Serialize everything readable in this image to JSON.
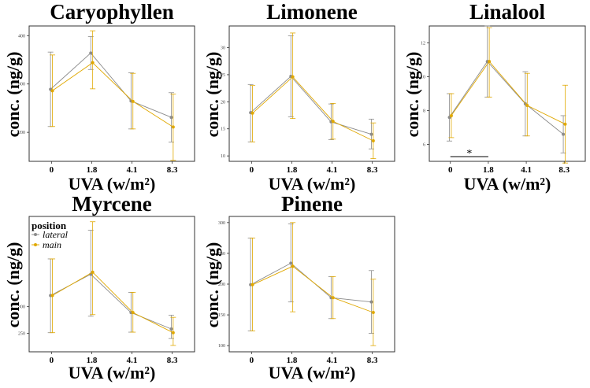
{
  "figure": {
    "legend": {
      "title": "position",
      "items": [
        "lateral",
        "main"
      ]
    },
    "colors": {
      "lateral": "#8c8c8c",
      "main": "#e0a800"
    }
  },
  "chart_data": [
    {
      "type": "line",
      "title": "Caryophyllen",
      "xlabel": "UVA (w/m²)",
      "ylabel": "conc. (ng/g)",
      "categories": [
        "0",
        "1.8",
        "4.1",
        "8.3"
      ],
      "ylim": [
        140,
        420
      ],
      "yticks": [
        200,
        300,
        400
      ],
      "series": [
        {
          "name": "lateral",
          "values": [
            289,
            364,
            265,
            231
          ],
          "lower": [
            212,
            330,
            207,
            180
          ],
          "upper": [
            366,
            398,
            323,
            282
          ]
        },
        {
          "name": "main",
          "values": [
            286,
            344,
            264,
            211
          ],
          "lower": [
            212,
            290,
            207,
            142
          ],
          "upper": [
            360,
            410,
            322,
            279
          ]
        }
      ],
      "annotations": []
    },
    {
      "type": "line",
      "title": "Limonene",
      "xlabel": "UVA (w/m²)",
      "ylabel": "conc. (ng/g)",
      "categories": [
        "0",
        "1.8",
        "4.1",
        "8.3"
      ],
      "ylim": [
        9,
        34
      ],
      "yticks": [
        10,
        15,
        20,
        25,
        30
      ],
      "series": [
        {
          "name": "lateral",
          "values": [
            18.0,
            24.7,
            16.3,
            14.0
          ],
          "lower": [
            12.6,
            17.2,
            13.0,
            11.3
          ],
          "upper": [
            23.2,
            32.2,
            19.6,
            16.8
          ]
        },
        {
          "name": "main",
          "values": [
            17.9,
            24.6,
            16.4,
            12.8
          ],
          "lower": [
            12.6,
            16.9,
            13.1,
            9.5
          ],
          "upper": [
            23.0,
            32.7,
            19.7,
            16.1
          ]
        }
      ],
      "annotations": []
    },
    {
      "type": "line",
      "title": "Linalool",
      "xlabel": "UVA (w/m²)",
      "ylabel": "conc. (ng/g)",
      "categories": [
        "0",
        "1.8",
        "4.1",
        "8.3"
      ],
      "ylim": [
        5,
        13
      ],
      "yticks": [
        6,
        8,
        10,
        12
      ],
      "series": [
        {
          "name": "lateral",
          "values": [
            7.6,
            10.9,
            8.4,
            6.6
          ],
          "lower": [
            6.2,
            8.8,
            6.5,
            5.5
          ],
          "upper": [
            9.0,
            13.0,
            10.3,
            7.7
          ]
        },
        {
          "name": "main",
          "values": [
            7.7,
            10.9,
            8.3,
            7.2
          ],
          "lower": [
            6.4,
            8.8,
            6.5,
            4.9
          ],
          "upper": [
            9.0,
            12.9,
            10.2,
            9.5
          ]
        }
      ],
      "annotations": [
        {
          "text": "*",
          "from": "0",
          "to": "1.8"
        }
      ]
    },
    {
      "type": "line",
      "title": "Myrcene",
      "xlabel": "UVA (w/m²)",
      "ylabel": "conc. (ng/g)",
      "categories": [
        "0",
        "1.8",
        "4.1",
        "8.3"
      ],
      "ylim": [
        215,
        470
      ],
      "yticks": [
        250,
        300
      ],
      "series": [
        {
          "name": "lateral",
          "values": [
            321,
            361,
            289,
            258
          ],
          "lower": [
            251,
            282,
            252,
            240
          ],
          "upper": [
            390,
            444,
            327,
            284
          ]
        },
        {
          "name": "main",
          "values": [
            321,
            365,
            289,
            251
          ],
          "lower": [
            251,
            285,
            252,
            227
          ],
          "upper": [
            390,
            460,
            327,
            280
          ]
        }
      ],
      "annotations": []
    },
    {
      "type": "line",
      "title": "Pinene",
      "xlabel": "UVA (w/m²)",
      "ylabel": "conc. (ng/g)",
      "categories": [
        "0",
        "1.8",
        "4.1",
        "8.3"
      ],
      "ylim": [
        90,
        310
      ],
      "yticks": [
        100,
        150,
        200,
        250,
        300
      ],
      "series": [
        {
          "name": "lateral",
          "values": [
            199,
            234,
            178,
            171
          ],
          "lower": [
            124,
            171,
            144,
            120
          ],
          "upper": [
            275,
            298,
            212,
            222
          ]
        },
        {
          "name": "main",
          "values": [
            199,
            229,
            178,
            154
          ],
          "lower": [
            124,
            155,
            144,
            100
          ],
          "upper": [
            275,
            300,
            212,
            208
          ]
        }
      ],
      "annotations": []
    }
  ]
}
